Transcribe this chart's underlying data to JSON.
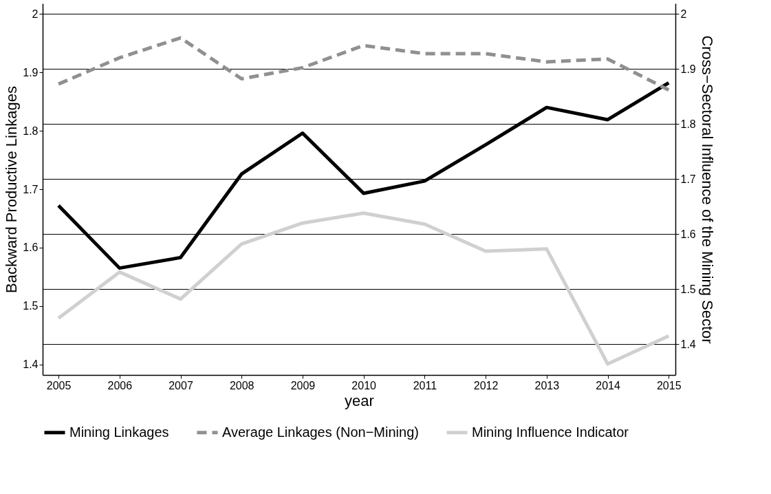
{
  "chart_data": {
    "type": "line",
    "xlabel": "year",
    "ylabel": "Backward Productive Linkages",
    "y2label": "Cross−Sectoral Influence of the Mining Sector",
    "x": [
      2005,
      2006,
      2007,
      2008,
      2009,
      2010,
      2011,
      2012,
      2013,
      2014,
      2015
    ],
    "xlim": [
      2004.74,
      2015.11
    ],
    "xticks": [
      2005,
      2006,
      2007,
      2008,
      2009,
      2010,
      2011,
      2012,
      2013,
      2014,
      2015
    ],
    "ylim": [
      1.382,
      2.018
    ],
    "yticks": [
      1.4,
      1.5,
      1.6,
      1.7,
      1.8,
      1.9,
      2
    ],
    "y2lim": [
      1.344,
      2.019
    ],
    "y2ticks": [
      1.4,
      1.5,
      1.6,
      1.7,
      1.8,
      1.9,
      2
    ],
    "grid": "y2",
    "legend": "bottom",
    "series": [
      {
        "name": "Mining Linkages",
        "color": "#000000",
        "line_style": "solid",
        "values": [
          1.672,
          1.565,
          1.583,
          1.726,
          1.796,
          1.693,
          1.714,
          1.776,
          1.84,
          1.819,
          1.882
        ]
      },
      {
        "name": "Average Linkages (Non−Mining)",
        "color": "#909090",
        "line_style": "dashed",
        "values": [
          1.88,
          1.925,
          1.959,
          1.889,
          1.908,
          1.946,
          1.932,
          1.932,
          1.918,
          1.923,
          1.87
        ]
      },
      {
        "name": "Mining Influence Indicator",
        "color": "#d0d0d0",
        "line_style": "solid",
        "axis": "y2",
        "values": [
          1.447,
          1.531,
          1.482,
          1.582,
          1.62,
          1.638,
          1.618,
          1.569,
          1.573,
          1.364,
          1.415
        ]
      }
    ]
  }
}
